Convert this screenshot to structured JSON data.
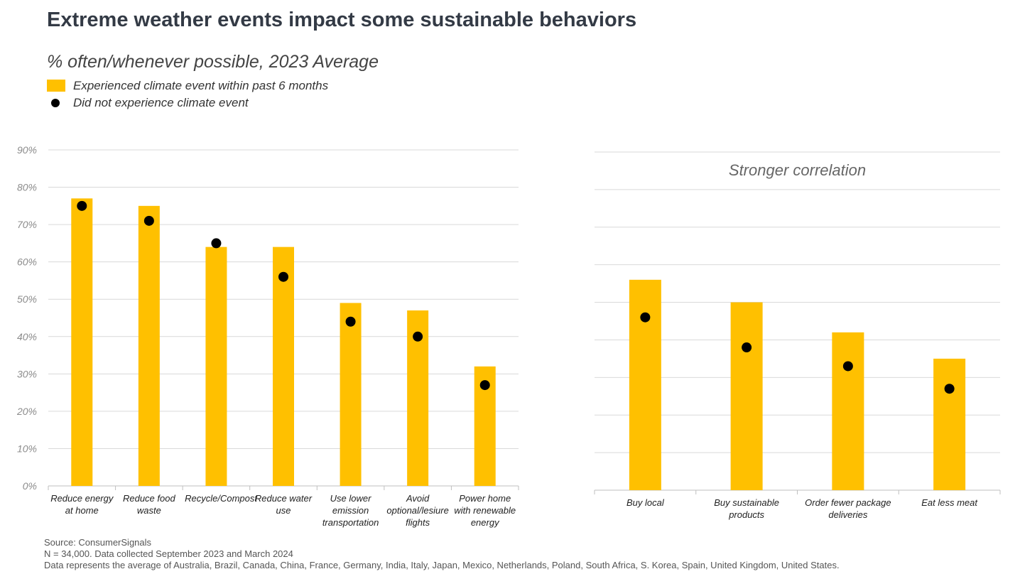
{
  "header": {
    "title": "Extreme weather events impact some sustainable behaviors",
    "subtitle": "% often/whenever possible, 2023 Average"
  },
  "chart_data": [
    {
      "type": "bar",
      "categories": [
        "Reduce energy at home",
        "Reduce food waste",
        "Recycle/Compost",
        "Reduce water use",
        "Use lower emission transportation",
        "Avoid optional/lesiure flights",
        "Power home with renewable energy"
      ],
      "series": [
        {
          "name": "Experienced climate event within past 6 months",
          "type": "bar",
          "color": "#FFC000",
          "values": [
            77,
            75,
            64,
            64,
            49,
            47,
            32
          ]
        },
        {
          "name": "Did not experience climate event",
          "type": "dot",
          "color": "#000000",
          "values": [
            75,
            71,
            65,
            56,
            44,
            40,
            27
          ]
        }
      ],
      "ylim": [
        0,
        90
      ],
      "yticks": [
        {
          "value": 0,
          "label": "0%"
        },
        {
          "value": 10,
          "label": "10%"
        },
        {
          "value": 20,
          "label": "20%"
        },
        {
          "value": 30,
          "label": "30%"
        },
        {
          "value": 40,
          "label": "40%"
        },
        {
          "value": 50,
          "label": "50%"
        },
        {
          "value": 60,
          "label": "60%"
        },
        {
          "value": 70,
          "label": "70%"
        },
        {
          "value": 80,
          "label": "80%"
        },
        {
          "value": 90,
          "label": "90%"
        }
      ],
      "grid": true
    },
    {
      "type": "bar",
      "annotation": "Stronger correlation",
      "categories": [
        "Buy local",
        "Buy sustainable products",
        "Order fewer package deliveries",
        "Eat less meat"
      ],
      "series": [
        {
          "type": "bar",
          "color": "#FFC000",
          "values": [
            56,
            50,
            42,
            35
          ]
        },
        {
          "type": "dot",
          "color": "#000000",
          "values": [
            46,
            38,
            33,
            27
          ]
        }
      ],
      "ylim": [
        0,
        90
      ],
      "yticks": [
        0,
        10,
        20,
        30,
        40,
        50,
        60,
        70,
        80,
        90
      ],
      "tick_labels": false,
      "grid": true
    }
  ],
  "notes": [
    "Source: ConsumerSignals",
    "N = 34,000. Data collected September 2023 and March 2024",
    "Data represents the average of Australia, Brazil, Canada, China, France, Germany, India, Italy, Japan, Mexico, Netherlands, Poland, South Africa, S. Korea, Spain, United Kingdom, United States."
  ]
}
